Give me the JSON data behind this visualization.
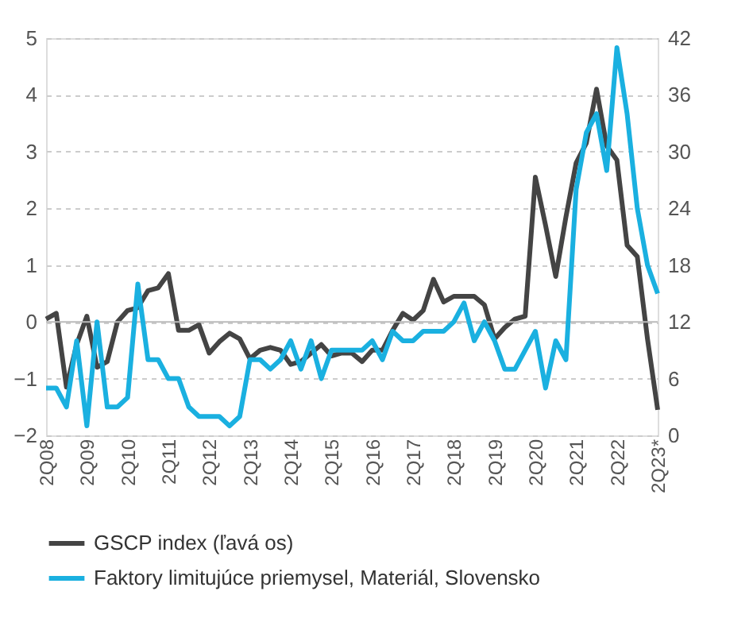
{
  "chart_data": {
    "type": "line",
    "categories": [
      "2Q08",
      null,
      null,
      null,
      "2Q09",
      null,
      null,
      null,
      "2Q10",
      null,
      null,
      null,
      "2Q11",
      null,
      null,
      null,
      "2Q12",
      null,
      null,
      null,
      "2Q13",
      null,
      null,
      null,
      "2Q14",
      null,
      null,
      null,
      "2Q15",
      null,
      null,
      null,
      "2Q16",
      null,
      null,
      null,
      "2Q17",
      null,
      null,
      null,
      "2Q18",
      null,
      null,
      null,
      "2Q19",
      null,
      null,
      null,
      "2Q20",
      null,
      null,
      null,
      "2Q21",
      null,
      null,
      null,
      "2Q22",
      null,
      null,
      null,
      "2Q23*"
    ],
    "series": [
      {
        "name": "GSCP index (ľavá os)",
        "color": "#444444",
        "values": [
          0.05,
          0.15,
          -1.15,
          -0.4,
          0.1,
          -0.8,
          -0.7,
          0.0,
          0.2,
          0.25,
          0.55,
          0.6,
          0.85,
          -0.15,
          -0.15,
          -0.05,
          -0.55,
          -0.35,
          -0.2,
          -0.3,
          -0.65,
          -0.5,
          -0.45,
          -0.5,
          -0.75,
          -0.7,
          -0.55,
          -0.4,
          -0.6,
          -0.55,
          -0.55,
          -0.7,
          -0.5,
          -0.5,
          -0.15,
          0.15,
          0.03,
          0.2,
          0.75,
          0.35,
          0.45,
          0.45,
          0.45,
          0.3,
          -0.3,
          -0.1,
          0.05,
          0.1,
          2.55,
          1.7,
          0.8,
          1.85,
          2.8,
          3.15,
          4.1,
          3.1,
          2.85,
          1.35,
          1.15,
          -0.3,
          -1.55
        ]
      },
      {
        "name": "Faktory limitujúce priemysel, Materiál, Slovensko",
        "color": "#1ab0e0",
        "axis": "y2",
        "values": [
          5,
          5,
          3,
          10,
          1,
          12,
          3,
          3,
          4,
          16,
          8,
          8,
          6,
          6,
          3,
          2,
          2,
          2,
          1,
          2,
          8,
          8,
          7,
          8,
          10,
          7,
          10,
          6,
          9,
          9,
          9,
          9,
          10,
          8,
          11,
          10,
          10,
          11,
          11,
          11,
          12,
          14,
          10,
          12,
          10,
          7,
          7,
          9,
          11,
          5,
          10,
          8,
          26,
          32,
          34,
          28,
          41,
          34,
          24,
          18,
          15
        ]
      }
    ],
    "ylim": [
      -2,
      5
    ],
    "yticks": [
      -2,
      -1,
      0,
      1,
      2,
      3,
      4,
      5
    ],
    "y2lim": [
      0,
      42
    ],
    "y2ticks": [
      0,
      6,
      12,
      18,
      24,
      30,
      36,
      42
    ],
    "grid": "y",
    "legend": "bottom",
    "line_style": "solid",
    "marker": "none"
  }
}
